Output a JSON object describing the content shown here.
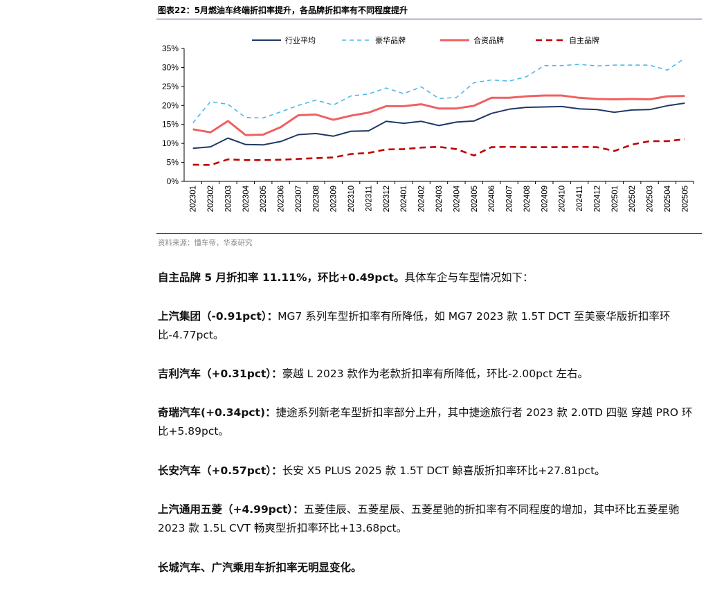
{
  "figure": {
    "title": "图表22：5月燃油车终端折扣率提升，各品牌折扣率有不同程度提升",
    "source": "资料来源：懂车帝，华泰研究"
  },
  "chart_data": {
    "type": "line",
    "title": "图表22：5月燃油车终端折扣率提升，各品牌折扣率有不同程度提升",
    "xlabel": "",
    "ylabel": "",
    "ylim": [
      0,
      35
    ],
    "yticks": [
      "0%",
      "5%",
      "10%",
      "15%",
      "20%",
      "25%",
      "30%",
      "35%"
    ],
    "legend_position": "top",
    "categories": [
      "202301",
      "202302",
      "202303",
      "202304",
      "202305",
      "202306",
      "202307",
      "202308",
      "202309",
      "202310",
      "202311",
      "202312",
      "202401",
      "202402",
      "202403",
      "202404",
      "202405",
      "202406",
      "202407",
      "202408",
      "202409",
      "202410",
      "202411",
      "202412",
      "202501",
      "202502",
      "202503",
      "202504",
      "202505"
    ],
    "series": [
      {
        "name": "行业平均",
        "color": "#1f3864",
        "style": "solid",
        "values": [
          8.7,
          9.1,
          11.4,
          9.7,
          9.6,
          10.5,
          12.3,
          12.6,
          11.9,
          13.2,
          13.3,
          15.8,
          15.3,
          15.8,
          14.7,
          15.6,
          15.9,
          17.9,
          19.0,
          19.5,
          19.6,
          19.7,
          19.1,
          18.9,
          18.2,
          18.8,
          18.9,
          19.9,
          20.6
        ]
      },
      {
        "name": "豪华品牌",
        "color": "#4db8e8",
        "style": "dashed",
        "values": [
          15.4,
          21.0,
          20.3,
          16.8,
          16.7,
          18.3,
          20.0,
          21.4,
          20.1,
          22.5,
          23.0,
          24.6,
          23.1,
          24.9,
          21.8,
          22.1,
          26.0,
          26.7,
          26.4,
          27.6,
          30.5,
          30.5,
          30.8,
          30.4,
          30.6,
          30.6,
          30.6,
          29.3,
          32.4
        ]
      },
      {
        "name": "合资品牌",
        "color": "#f06060",
        "style": "solid",
        "values": [
          13.7,
          12.9,
          15.9,
          12.2,
          12.3,
          14.3,
          17.4,
          17.6,
          16.2,
          17.3,
          18.1,
          19.8,
          19.8,
          20.3,
          19.2,
          19.2,
          19.9,
          22.0,
          22.0,
          22.4,
          22.6,
          22.6,
          22.0,
          21.7,
          21.6,
          21.7,
          21.6,
          22.4,
          22.5
        ]
      },
      {
        "name": "自主品牌",
        "color": "#c00000",
        "style": "dashed",
        "values": [
          4.4,
          4.3,
          5.8,
          5.6,
          5.6,
          5.7,
          5.9,
          6.1,
          6.3,
          7.2,
          7.5,
          8.4,
          8.5,
          8.9,
          9.1,
          8.5,
          6.8,
          9.0,
          9.1,
          9.0,
          9.0,
          9.0,
          9.1,
          9.0,
          8.0,
          9.7,
          10.6,
          10.6,
          11.1
        ]
      }
    ]
  },
  "paragraphs": [
    {
      "lead": "自主品牌 5 月折扣率 11.11%，环比+0.49pct。",
      "text": "具体车企与车型情况如下："
    },
    {
      "lead": "上汽集团（-0.91pct）：",
      "text": "MG7 系列车型折扣率有所降低，如 MG7 2023 款 1.5T DCT 至美豪华版折扣率环比-4.77pct。"
    },
    {
      "lead": "吉利汽车（+0.31pct）：",
      "text": "豪越 L 2023 款作为老款折扣率有所降低，环比-2.00pct 左右。"
    },
    {
      "lead": "奇瑞汽车(+0.34pct)：",
      "text": "捷途系列新老车型折扣率部分上升，其中捷途旅行者 2023 款 2.0TD 四驱 穿越 PRO 环比+5.89pct。"
    },
    {
      "lead": "长安汽车（+0.57pct）：",
      "text": "长安 X5 PLUS 2025 款 1.5T DCT 鲸喜版折扣率环比+27.81pct。"
    },
    {
      "lead": "上汽通用五菱（+4.99pct）：",
      "text": "五菱佳辰、五菱星辰、五菱星驰的折扣率有不同程度的增加，其中环比五菱星驰 2023 款 1.5L CVT 畅爽型折扣率环比+13.68pct。"
    },
    {
      "lead": "长城汽车、广汽乘用车折扣率无明显变化。",
      "text": ""
    }
  ]
}
